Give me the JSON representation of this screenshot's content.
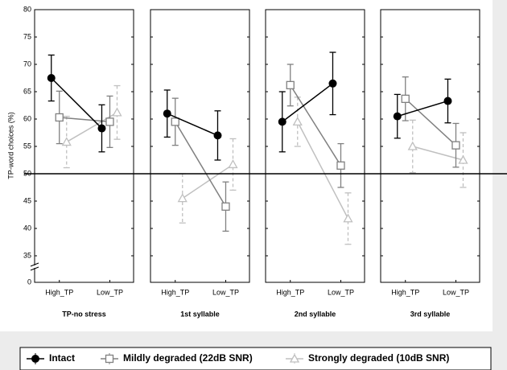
{
  "chart_data": {
    "type": "line",
    "ylabel": "TP-word choices (%)",
    "ylim": [
      0,
      80
    ],
    "ybreak": [
      0,
      30
    ],
    "yticks": [
      0,
      35,
      40,
      45,
      50,
      55,
      60,
      65,
      70,
      75,
      80
    ],
    "reference_line": 50,
    "categories": [
      "High_TP",
      "Low_TP"
    ],
    "series": [
      {
        "name": "Intact",
        "color": "#000000",
        "marker": "circle",
        "dashed": false
      },
      {
        "name": "Mildly degraded (22dB SNR)",
        "color": "#808080",
        "marker": "square",
        "dashed": false
      },
      {
        "name": "Strongly degraded (10dB SNR)",
        "color": "#c0c0c0",
        "marker": "triangle",
        "dashed": true
      }
    ],
    "panels": [
      {
        "title": "TP-no stress",
        "values": [
          [
            67.5,
            58.3
          ],
          [
            60.3,
            59.5
          ],
          [
            55.8,
            61.2
          ]
        ],
        "errors": [
          [
            4.2,
            4.3
          ],
          [
            4.8,
            4.7
          ],
          [
            4.7,
            4.9
          ]
        ]
      },
      {
        "title": "1st syllable",
        "values": [
          [
            61.0,
            57.0
          ],
          [
            59.5,
            44.0
          ],
          [
            45.5,
            51.7
          ]
        ],
        "errors": [
          [
            4.3,
            4.5
          ],
          [
            4.3,
            4.5
          ],
          [
            4.5,
            4.7
          ]
        ]
      },
      {
        "title": "2nd syllable",
        "values": [
          [
            59.5,
            66.5
          ],
          [
            66.2,
            51.5
          ],
          [
            59.5,
            41.8
          ]
        ],
        "errors": [
          [
            5.5,
            5.7
          ],
          [
            3.8,
            4.0
          ],
          [
            4.5,
            4.7
          ]
        ]
      },
      {
        "title": "3rd syllable",
        "values": [
          [
            60.5,
            63.3
          ],
          [
            63.7,
            55.2
          ],
          [
            55.0,
            52.5
          ]
        ],
        "errors": [
          [
            4.0,
            4.0
          ],
          [
            4.0,
            4.0
          ],
          [
            4.8,
            5.0
          ]
        ]
      }
    ]
  }
}
